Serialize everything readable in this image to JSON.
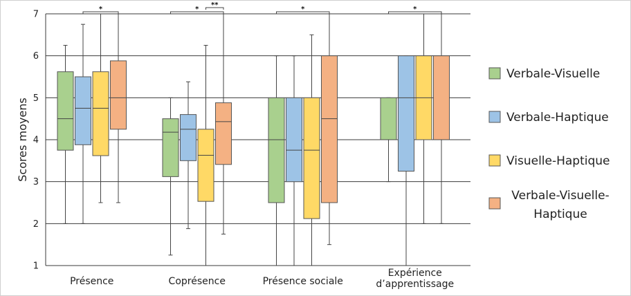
{
  "chart_data": {
    "type": "boxplot",
    "ylabel": "Scores moyens",
    "ylim": [
      1,
      7
    ],
    "yticks": [
      "1",
      "2",
      "3",
      "4",
      "5",
      "6",
      "7"
    ],
    "categories": [
      {
        "label": [
          "Présence"
        ]
      },
      {
        "label": [
          "Coprésence"
        ]
      },
      {
        "label": [
          "Présence sociale"
        ]
      },
      {
        "label": [
          "Expérience",
          "d’apprentissage"
        ]
      }
    ],
    "series": [
      {
        "name": "Verbale-Visuelle",
        "legend": [
          "Verbale-Visuelle"
        ],
        "color": "#a9d08e"
      },
      {
        "name": "Verbale-Haptique",
        "legend": [
          "Verbale-Haptique"
        ],
        "color": "#9dc3e6"
      },
      {
        "name": "Visuelle-Haptique",
        "legend": [
          "Visuelle-Haptique"
        ],
        "color": "#ffd966"
      },
      {
        "name": "Verbale-Visuelle-Haptique",
        "legend": [
          "Verbale-Visuelle-",
          "Haptique"
        ],
        "color": "#f4b183"
      }
    ],
    "boxes": [
      [
        {
          "min": 2,
          "q1": 3.75,
          "median": 4.5,
          "q3": 5.62,
          "max": 6.25
        },
        {
          "min": 2,
          "q1": 3.88,
          "median": 4.75,
          "q3": 5.5,
          "max": 6.75
        },
        {
          "min": 2.5,
          "q1": 3.62,
          "median": 4.75,
          "q3": 5.62,
          "max": 7
        },
        {
          "min": 2.5,
          "q1": 4.25,
          "median": 5,
          "q3": 5.88,
          "max": 7
        }
      ],
      [
        {
          "min": 1.25,
          "q1": 3.12,
          "median": 4.18,
          "q3": 4.5,
          "max": 5
        },
        {
          "min": 1.88,
          "q1": 3.5,
          "median": 4.25,
          "q3": 4.6,
          "max": 5.38
        },
        {
          "min": 1,
          "q1": 2.53,
          "median": 3.63,
          "q3": 4.25,
          "max": 6.25
        },
        {
          "min": 1.75,
          "q1": 3.41,
          "median": 4.43,
          "q3": 4.88,
          "max": 7
        }
      ],
      [
        {
          "min": 1,
          "q1": 2.5,
          "median": 4,
          "q3": 5,
          "max": 6
        },
        {
          "min": 1,
          "q1": 3,
          "median": 3.75,
          "q3": 5,
          "max": 6
        },
        {
          "min": 1,
          "q1": 2.12,
          "median": 3.75,
          "q3": 5,
          "max": 6.5
        },
        {
          "min": 1.5,
          "q1": 2.5,
          "median": 4.5,
          "q3": 6,
          "max": 7
        }
      ],
      [
        {
          "min": 3,
          "q1": 4,
          "median": 4,
          "q3": 5,
          "max": 5
        },
        {
          "min": 1,
          "q1": 3.25,
          "median": 5,
          "q3": 6,
          "max": 6
        },
        {
          "min": 2,
          "q1": 4,
          "median": 5,
          "q3": 6,
          "max": 7
        },
        {
          "min": 2,
          "q1": 4,
          "median": 4,
          "q3": 6,
          "max": 7
        }
      ]
    ],
    "significance": [
      {
        "category": 0,
        "from": 1,
        "to": 3,
        "label": "*"
      },
      {
        "category": 1,
        "from": 0,
        "to": 3,
        "label": "*"
      },
      {
        "category": 1,
        "from": 2,
        "to": 3,
        "label": "**"
      },
      {
        "category": 2,
        "from": 0,
        "to": 3,
        "label": "*"
      },
      {
        "category": 3,
        "from": 0,
        "to": 3,
        "label": "*"
      }
    ],
    "grid": "horizontal",
    "legend_position": "right"
  }
}
